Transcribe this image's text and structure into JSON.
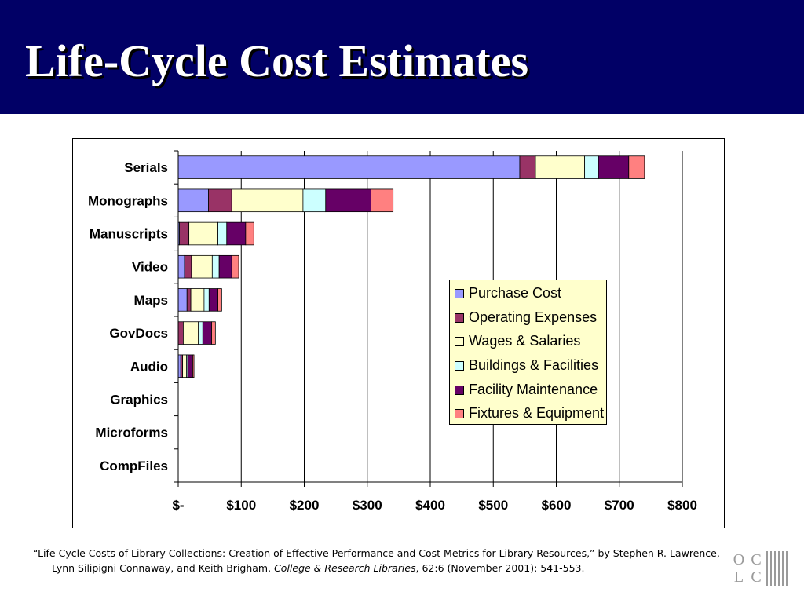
{
  "header": {
    "title": "Life-Cycle Cost Estimates"
  },
  "chart_data": {
    "type": "bar",
    "orientation": "horizontal",
    "stacked": true,
    "categories": [
      "Serials",
      "Monographs",
      "Manuscripts",
      "Video",
      "Maps",
      "GovDocs",
      "Audio",
      "Graphics",
      "Microforms",
      "CompFiles"
    ],
    "series": [
      {
        "name": "Purchase Cost",
        "color": "#9999ff",
        "values": [
          542,
          48,
          2,
          10,
          14,
          0,
          4,
          0,
          0,
          0
        ]
      },
      {
        "name": "Operating Expenses",
        "color": "#993366",
        "values": [
          25,
          37,
          15,
          11,
          6,
          8,
          3,
          0,
          0,
          0
        ]
      },
      {
        "name": "Wages & Salaries",
        "color": "#ffffcc",
        "values": [
          78,
          113,
          46,
          33,
          21,
          24,
          6,
          0,
          0,
          0
        ]
      },
      {
        "name": "Buildings & Facilities",
        "color": "#ccffff",
        "values": [
          22,
          36,
          14,
          11,
          8,
          7,
          2,
          0,
          0,
          0
        ]
      },
      {
        "name": "Facility Maintenance",
        "color": "#660066",
        "values": [
          48,
          72,
          30,
          20,
          14,
          14,
          8,
          0,
          0,
          0
        ]
      },
      {
        "name": "Fixtures & Equipment",
        "color": "#ff8080",
        "values": [
          25,
          35,
          13,
          11,
          6,
          6,
          2,
          0,
          0,
          0
        ]
      }
    ],
    "xlim": [
      0,
      800
    ],
    "xticks": [
      0,
      100,
      200,
      300,
      400,
      500,
      600,
      700,
      800
    ],
    "xtick_labels": [
      "$-",
      "$100",
      "$200",
      "$300",
      "$400",
      "$500",
      "$600",
      "$700",
      "$800"
    ],
    "grid": "vertical",
    "legend": "center-right"
  },
  "citation": {
    "prefix": "“Life Cycle Costs of Library Collections: Creation of Effective Performance and Cost Metrics for Library Resources,” by Stephen R. Lawrence, Lynn Silipigni Connaway, and Keith Brigham. ",
    "journal": "College & Research Libraries",
    "suffix": ", 62:6 (November 2001): 541-553."
  },
  "logo": {
    "letters": [
      "O",
      "C",
      "L",
      "C"
    ]
  }
}
